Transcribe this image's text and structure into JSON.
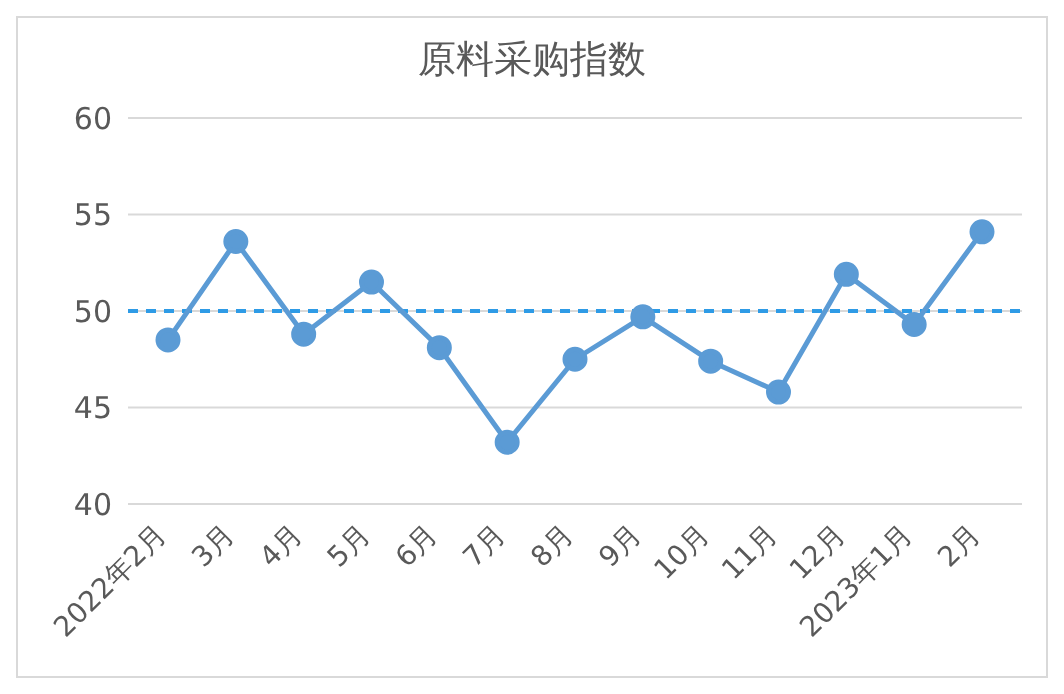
{
  "chart_data": {
    "type": "line",
    "title": "原料采购指数",
    "categories": [
      "2022年2月",
      "3月",
      "4月",
      "5月",
      "6月",
      "7月",
      "8月",
      "9月",
      "10月",
      "11月",
      "12月",
      "2023年1月",
      "2月"
    ],
    "series": [
      {
        "color": "#5b9bd5",
        "values": [
          48.5,
          53.6,
          48.8,
          51.5,
          48.1,
          43.2,
          47.5,
          49.7,
          47.4,
          45.8,
          51.9,
          49.3,
          54.1
        ]
      }
    ],
    "ylim": [
      40,
      60
    ],
    "yticks": [
      40,
      45,
      50,
      55,
      60
    ],
    "grid": "y",
    "marker": "circle",
    "line_style": "solid",
    "ref_lines": [
      {
        "axis": "y",
        "value": 50,
        "color": "#2e9be6",
        "line_style": "dashed"
      }
    ]
  }
}
